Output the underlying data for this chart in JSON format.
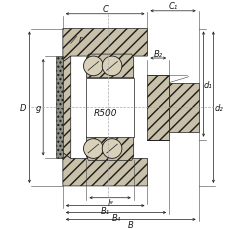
{
  "bg_color": "#ffffff",
  "line_color": "#1a1a1a",
  "metal_color": "#c8c0a8",
  "ball_color": "#d8d0b8",
  "seal_color": "#909088",
  "labels": {
    "C": "C",
    "C1": "C₁",
    "B2": "B₂",
    "r": "r",
    "D": "D",
    "g": "g",
    "R500": "R500",
    "d1": "d₁",
    "d2": "d₂",
    "lg": "lᵍ",
    "B1": "B₁",
    "B4": "B₄",
    "B": "B"
  },
  "fs": 6.0
}
